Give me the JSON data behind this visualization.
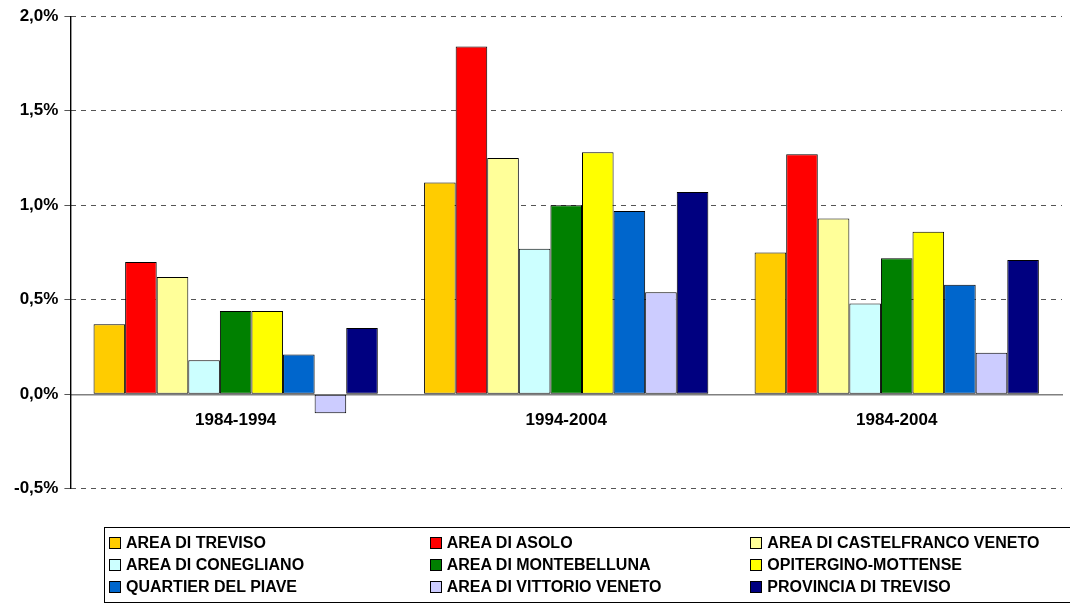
{
  "chart_data": {
    "type": "bar",
    "categories": [
      "1984-1994",
      "1994-2004",
      "1984-2004"
    ],
    "series": [
      {
        "name": "AREA DI TREVISO",
        "color": "#ffcc00",
        "values": [
          0.37,
          1.12,
          0.75
        ]
      },
      {
        "name": "AREA DI ASOLO",
        "color": "#ff0000",
        "values": [
          0.7,
          1.84,
          1.27
        ]
      },
      {
        "name": "AREA DI CASTELFRANCO VENETO",
        "color": "#ffff99",
        "values": [
          0.62,
          1.25,
          0.93
        ]
      },
      {
        "name": "AREA DI CONEGLIANO",
        "color": "#ccffff",
        "values": [
          0.18,
          0.77,
          0.48
        ]
      },
      {
        "name": "AREA DI MONTEBELLUNA",
        "color": "#008000",
        "values": [
          0.44,
          1.0,
          0.72
        ]
      },
      {
        "name": "OPITERGINO-MOTTENSE",
        "color": "#ffff00",
        "values": [
          0.44,
          1.28,
          0.86
        ]
      },
      {
        "name": "QUARTIER DEL PIAVE",
        "color": "#0066cc",
        "values": [
          0.21,
          0.97,
          0.58
        ]
      },
      {
        "name": "AREA DI VITTORIO VENETO",
        "color": "#ccccff",
        "values": [
          -0.1,
          0.54,
          0.22
        ]
      },
      {
        "name": "PROVINCIA DI TREVISO",
        "color": "#000080",
        "values": [
          0.35,
          1.07,
          0.71
        ]
      }
    ],
    "ylim": [
      -0.5,
      2.0
    ],
    "yticks": [
      {
        "value": -0.5,
        "label": "-0,5%"
      },
      {
        "value": 0,
        "label": "0,0%"
      },
      {
        "value": 0.5,
        "label": "0,5%"
      },
      {
        "value": 1.0,
        "label": "1,0%"
      },
      {
        "value": 1.5,
        "label": "1,5%"
      },
      {
        "value": 2.0,
        "label": "2,0%"
      }
    ],
    "grid": "y",
    "legend": "bottom"
  }
}
